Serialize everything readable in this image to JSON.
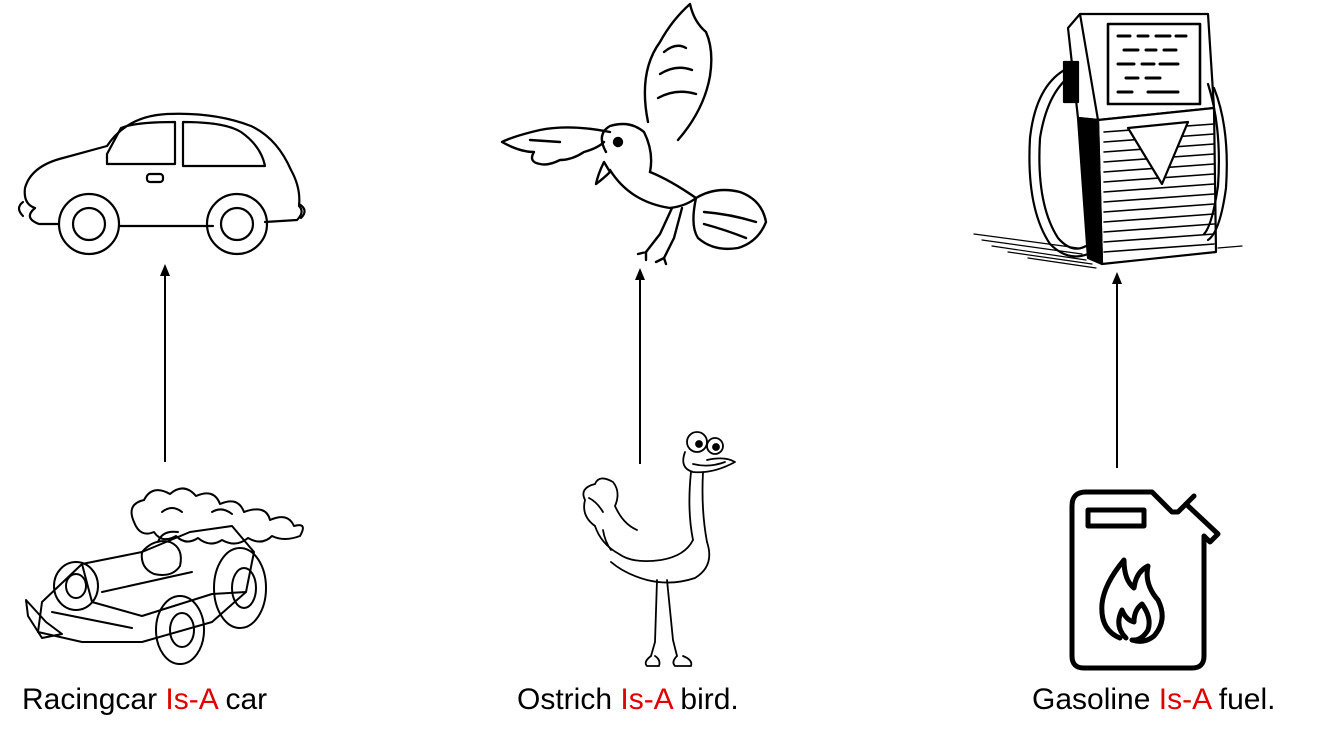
{
  "colors": {
    "relation": "#e00000",
    "ink": "#000000",
    "background": "#ffffff"
  },
  "columns": [
    {
      "parent_icon": "car-icon",
      "child_icon": "racing-car-icon",
      "caption": {
        "subject": "Racingcar",
        "relation": "Is-A",
        "object": "car"
      }
    },
    {
      "parent_icon": "bird-icon",
      "child_icon": "ostrich-icon",
      "caption": {
        "subject": "Ostrich",
        "relation": "Is-A",
        "object": "bird."
      }
    },
    {
      "parent_icon": "fuel-pump-icon",
      "child_icon": "gasoline-can-icon",
      "caption": {
        "subject": "Gasoline",
        "relation": "Is-A",
        "object": "fuel."
      }
    }
  ]
}
